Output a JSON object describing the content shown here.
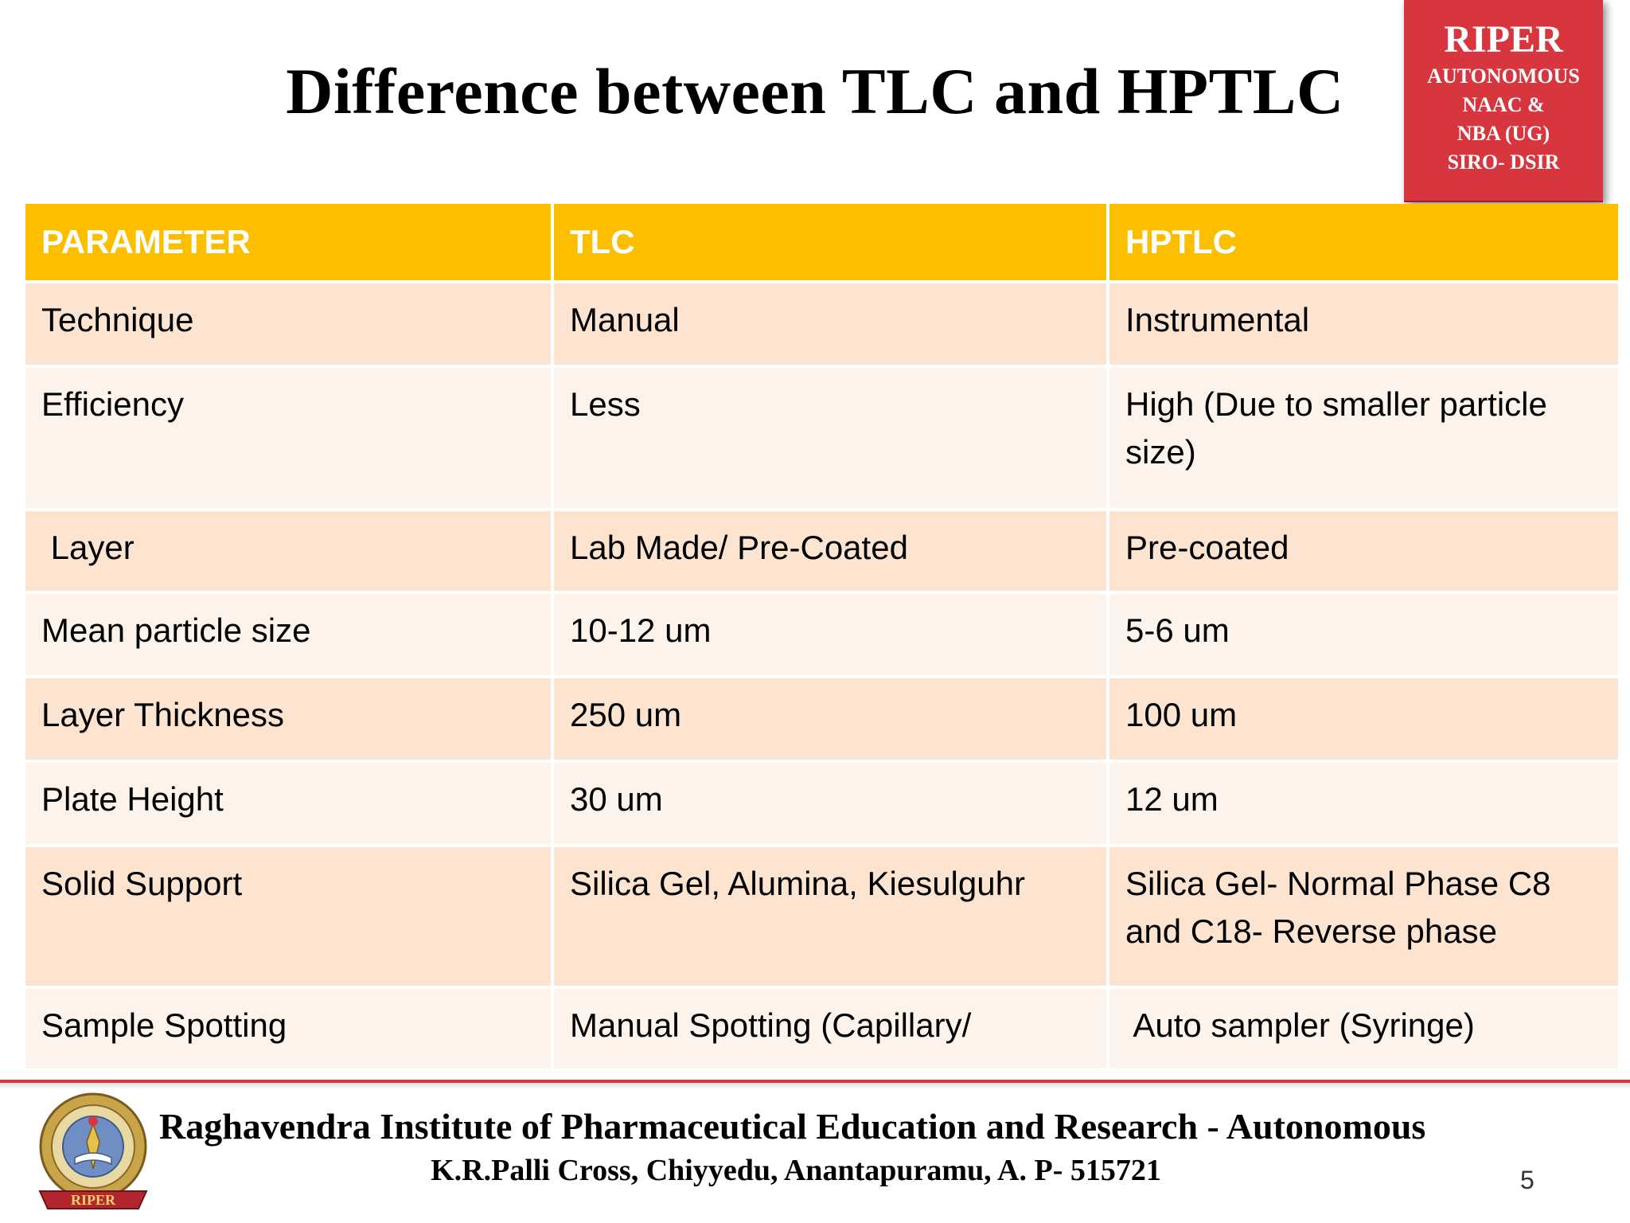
{
  "title": "Difference between TLC and HPTLC",
  "badge": {
    "title": "RIPER",
    "lines": [
      "AUTONOMOUS",
      "NAAC &",
      "NBA (UG)",
      "SIRO- DSIR"
    ]
  },
  "table": {
    "headers": [
      "PARAMETER",
      "TLC",
      "HPTLC"
    ],
    "rows": [
      [
        "Technique",
        "Manual",
        "Instrumental"
      ],
      [
        "Efficiency",
        "Less",
        "High (Due to smaller particle size)"
      ],
      [
        " Layer",
        "Lab Made/ Pre-Coated",
        "Pre-coated"
      ],
      [
        "Mean particle size",
        "10-12 um",
        "5-6 um"
      ],
      [
        "Layer Thickness",
        "250 um",
        "100 um"
      ],
      [
        "Plate Height",
        "30 um",
        "12 um"
      ],
      [
        "Solid Support",
        "Silica Gel, Alumina, Kiesulguhr",
        "Silica Gel- Normal Phase C8 and C18- Reverse phase"
      ],
      [
        "Sample Spotting",
        "Manual Spotting (Capillary/",
        " Auto sampler (Syringe)"
      ]
    ]
  },
  "footer": {
    "institute": "Raghavendra Institute of Pharmaceutical Education and Research - Autonomous",
    "address": "K.R.Palli Cross, Chiyyedu, Anantapuramu, A. P- 515721",
    "page_number": "5",
    "logo_label": "RIPER"
  },
  "colors": {
    "header_fill": "#fcbf00",
    "row_odd": "#fce4d0",
    "row_even": "#fdf3eb",
    "badge_red": "#d7363f",
    "footer_rule": "#d7363f"
  }
}
